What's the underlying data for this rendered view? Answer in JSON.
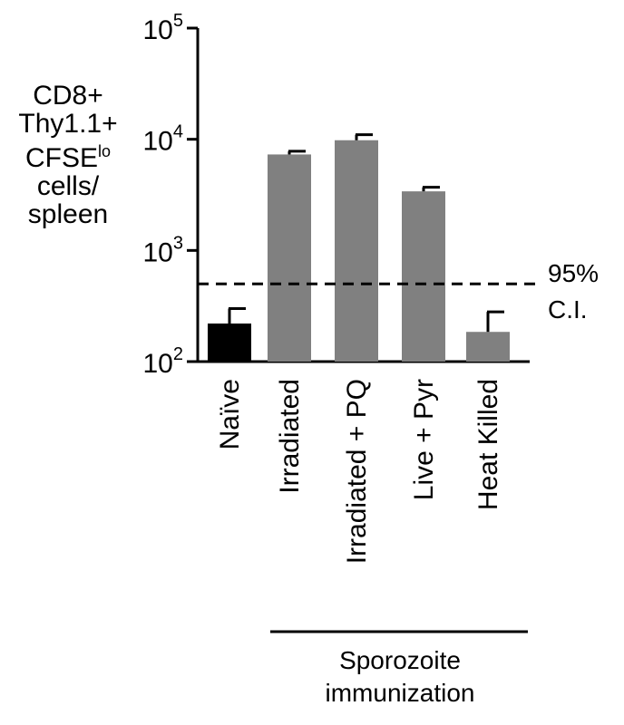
{
  "chart_data": {
    "type": "bar",
    "y_scale": "log",
    "ylim": [
      100,
      100000
    ],
    "ylabel_lines": [
      "CD8+",
      "Thy1.1+",
      "CFSE",
      "cells/",
      "spleen"
    ],
    "ylabel_superscript": "lo",
    "yticks": [
      {
        "base": "10",
        "exp": "2",
        "value": 100
      },
      {
        "base": "10",
        "exp": "3",
        "value": 1000
      },
      {
        "base": "10",
        "exp": "4",
        "value": 10000
      },
      {
        "base": "10",
        "exp": "5",
        "value": 100000
      }
    ],
    "categories": [
      "Naïve",
      "Irradiated",
      "Irradiated + PQ",
      "Live + Pyr",
      "Heat Killed"
    ],
    "values": [
      220,
      7300,
      9800,
      3400,
      185
    ],
    "error_upper": [
      300,
      7800,
      11000,
      3700,
      280
    ],
    "colors": [
      "#000000",
      "#808080",
      "#808080",
      "#808080",
      "#808080"
    ],
    "reference_line": {
      "value": 500,
      "style": "dashed",
      "label_lines": [
        "95%",
        "C.I."
      ]
    },
    "group_label": {
      "text_lines": [
        "Sporozoite",
        "immunization"
      ],
      "categories": [
        "Irradiated",
        "Irradiated + PQ",
        "Live + Pyr",
        "Heat Killed"
      ]
    },
    "grid": false,
    "legend": "none"
  }
}
